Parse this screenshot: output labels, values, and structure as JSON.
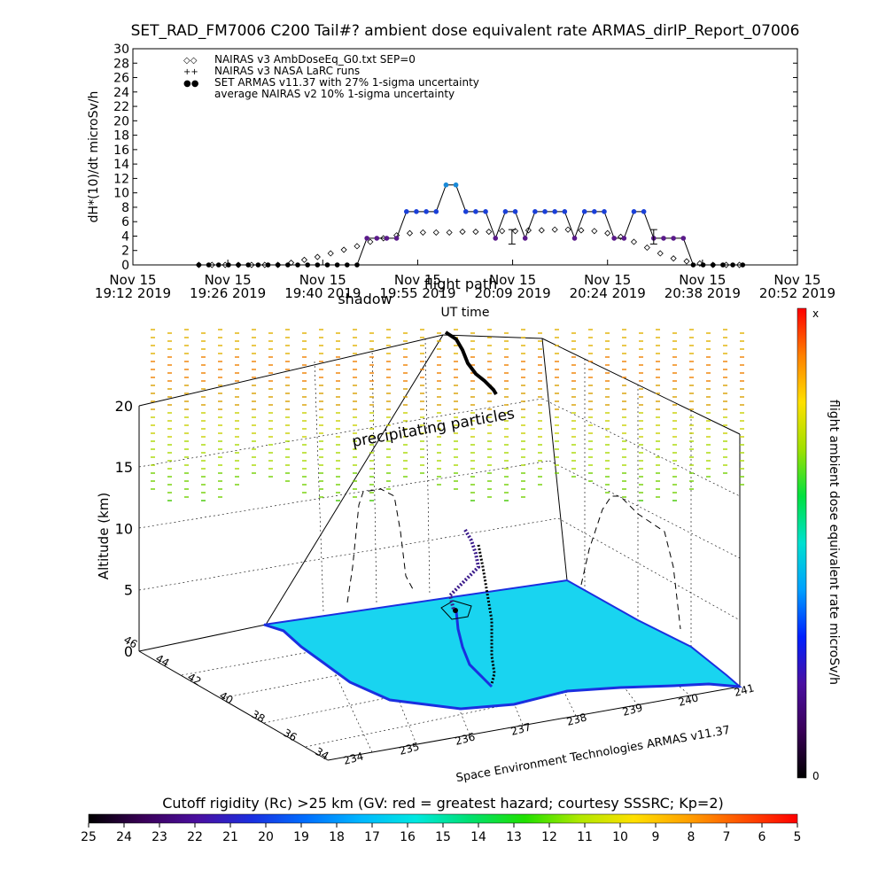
{
  "chart_data": [
    {
      "type": "scatter",
      "title": "SET_RAD_FM7006  C200 Tail#? ambient dose equivalent rate ARMAS_dirIP_Report_07006",
      "ylabel": "dH*(10)/dt microSv/h",
      "xlabel": "UT time",
      "ylim": [
        0,
        30
      ],
      "y_ticks": [
        "0",
        "2",
        "4",
        "6",
        "8",
        "10",
        "12",
        "14",
        "16",
        "18",
        "20",
        "22",
        "24",
        "26",
        "28",
        "30"
      ],
      "x_ticks": [
        {
          "date": "Nov 15",
          "time": "19:12 2019"
        },
        {
          "date": "Nov 15",
          "time": "19:26 2019"
        },
        {
          "date": "Nov 15",
          "time": "19:40 2019"
        },
        {
          "date": "Nov 15",
          "time": "19:55 2019"
        },
        {
          "date": "Nov 15",
          "time": "20:09 2019"
        },
        {
          "date": "Nov 15",
          "time": "20:24 2019"
        },
        {
          "date": "Nov 15",
          "time": "20:38 2019"
        },
        {
          "date": "Nov 15",
          "time": "20:52 2019"
        }
      ],
      "x_tick_minutes": [
        0,
        14.4,
        28.8,
        43.2,
        57.6,
        72,
        86.4,
        100.8
      ],
      "legend": [
        {
          "symbol": "◇◇",
          "label": "NAIRAS v3 AmbDoseEq_G0.txt SEP=0"
        },
        {
          "symbol": "++",
          "label": "NAIRAS v3 NASA LaRC runs"
        },
        {
          "symbol": "●●",
          "label": "SET ARMAS v11.37 with 27% 1-sigma uncertainty"
        },
        {
          "symbol": "",
          "label": "average NAIRAS v2 10% 1-sigma uncertainty"
        }
      ],
      "legend_position": "top-left",
      "series": [
        {
          "name": "SET ARMAS v11.37 with 27% 1-sigma uncertainty",
          "x_minutes": [
            10,
            11.5,
            13,
            14.5,
            16,
            17.5,
            19,
            20.5,
            22,
            23.5,
            25,
            26.5,
            28,
            29.5,
            31,
            32.5,
            34,
            35.5,
            37,
            38.5,
            40,
            41.5,
            43,
            44.5,
            46,
            47.5,
            49,
            50.5,
            52,
            53.5,
            55,
            56.5,
            58,
            59.5,
            61,
            62.5,
            64,
            65.5,
            67,
            68.5,
            70,
            71.5,
            73,
            74.5,
            76,
            77.5,
            79,
            80.5,
            82,
            83.5,
            85,
            86.5,
            88,
            89.5,
            91,
            92.5
          ],
          "values": [
            0,
            0,
            0,
            0,
            0,
            0,
            0,
            0,
            0,
            0,
            0,
            0,
            0,
            0,
            0,
            0,
            0,
            3.7,
            3.7,
            3.7,
            3.7,
            7.4,
            7.4,
            7.4,
            7.4,
            11.1,
            11.1,
            7.4,
            7.4,
            7.4,
            3.7,
            7.4,
            7.4,
            3.7,
            7.4,
            7.4,
            7.4,
            7.4,
            3.7,
            7.4,
            7.4,
            7.4,
            3.7,
            3.7,
            7.4,
            7.4,
            3.7,
            3.7,
            3.7,
            3.7,
            0,
            0,
            0,
            0,
            0,
            0
          ]
        },
        {
          "name": "NAIRAS v3 AmbDoseEq_G0.txt SEP=0",
          "x_minutes": [
            10,
            12,
            14,
            16,
            18,
            20,
            22,
            24,
            26,
            28,
            30,
            32,
            34,
            36,
            38,
            40,
            42,
            44,
            46,
            48,
            50,
            52,
            54,
            56,
            58,
            60,
            62,
            64,
            66,
            68,
            70,
            72,
            74,
            76,
            78,
            80,
            82,
            84,
            86,
            88,
            90,
            92
          ],
          "values": [
            0,
            0,
            0,
            0,
            0,
            0,
            0,
            0.3,
            0.7,
            1.1,
            1.6,
            2.1,
            2.6,
            3.2,
            3.7,
            4.1,
            4.4,
            4.5,
            4.5,
            4.5,
            4.6,
            4.6,
            4.6,
            4.7,
            4.7,
            4.8,
            4.8,
            4.9,
            4.9,
            4.8,
            4.7,
            4.4,
            3.9,
            3.2,
            2.4,
            1.6,
            0.9,
            0.5,
            0.2,
            0,
            0,
            0
          ]
        }
      ],
      "error_bars": [
        {
          "x_minutes": 57.5,
          "value": 3.9,
          "low": 2.9,
          "high": 4.9
        },
        {
          "x_minutes": 79,
          "value": 3.9,
          "low": 2.9,
          "high": 4.9
        }
      ],
      "colors": {
        "armas_marker": "#1a3fd8",
        "armas_high": "#1a8ad8",
        "armas_low": "#5a1a8a"
      }
    },
    {
      "type": "scatter",
      "subtype": "3d-flight-path",
      "zlabel": "Altitude (km)",
      "z_ticks": [
        "0",
        "5",
        "10",
        "15",
        "20"
      ],
      "lat_ticks": [
        "34",
        "36",
        "38",
        "40",
        "42",
        "44",
        "46"
      ],
      "lon_ticks": [
        "234",
        "235",
        "236",
        "237",
        "238",
        "239",
        "240",
        "241"
      ],
      "annotations": [
        "shadow",
        "flight path",
        "precipitating particles"
      ],
      "credit": "Space Environment Technologies ARMAS v11.37",
      "colorbar": {
        "label": "flight ambient dose equivalent rate microSv/h",
        "top_label": "x",
        "bottom_label": "0",
        "colors": [
          "#000000",
          "#3a0058",
          "#4a0fa0",
          "#0020ff",
          "#00a0ff",
          "#00e0d0",
          "#00e040",
          "#a0e000",
          "#ffe000",
          "#ff8000",
          "#ff0000"
        ]
      }
    },
    {
      "type": "heatmap",
      "subtype": "colorbar",
      "title": "Cutoff rigidity (Rc) >25 km (GV: red = greatest hazard; courtesy SSSRC; Kp=2)",
      "tick_labels": [
        "25",
        "24",
        "23",
        "22",
        "21",
        "20",
        "19",
        "18",
        "17",
        "16",
        "15",
        "14",
        "13",
        "12",
        "11",
        "10",
        "9",
        "8",
        "7",
        "6",
        "5"
      ],
      "colors": [
        "#000000",
        "#3a0058",
        "#4a0fa0",
        "#1a2fe0",
        "#0070ff",
        "#00b8ff",
        "#00e8e0",
        "#00e070",
        "#20e000",
        "#b0e800",
        "#ffe000",
        "#ffa000",
        "#ff5000",
        "#ff0000"
      ]
    }
  ]
}
